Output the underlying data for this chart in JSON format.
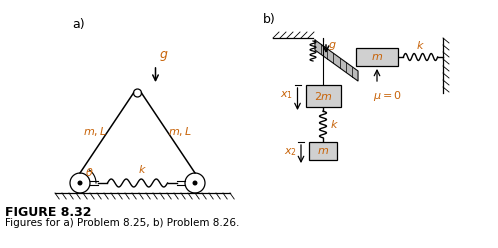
{
  "fig_label_a": "a)",
  "fig_label_b": "b)",
  "figure_title": "FIGURE 8.32",
  "figure_caption": "Figures for a) Problem 8.25, b) Problem 8.26.",
  "bg_color": "#ffffff",
  "line_color": "#000000",
  "text_italic_color": "#c8640a",
  "box_face": "#d8d8d8"
}
